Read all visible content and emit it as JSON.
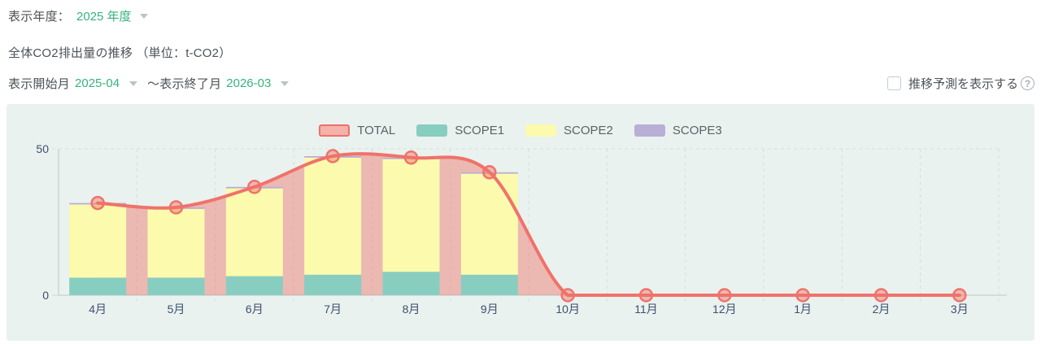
{
  "header": {
    "year_label": "表示年度：",
    "year_value": "2025 年度",
    "chart_title": "全体CO2排出量の推移 （単位：t-CO2）",
    "start_label": "表示開始月",
    "start_value": "2025-04",
    "range_separator": "～表示終了月",
    "end_value": "2026-03",
    "forecast_checkbox_label": "推移予測を表示する",
    "help_icon_glyph": "?"
  },
  "colors": {
    "accent_green": "#35b37e",
    "panel_background": "#e9f2ef",
    "axis_text": "#3f4e6e",
    "grid_line": "#d3e0dc",
    "axis_line": "#c9d8d3"
  },
  "chart_data": {
    "type": "line+stacked-bar",
    "title": "全体CO2排出量の推移",
    "unit": "t-CO2",
    "categories": [
      "4月",
      "5月",
      "6月",
      "7月",
      "8月",
      "9月",
      "10月",
      "11月",
      "12月",
      "1月",
      "2月",
      "3月"
    ],
    "ylim": [
      0,
      50
    ],
    "yticks": [
      0,
      50
    ],
    "grid": true,
    "legend_position": "top-center",
    "series": [
      {
        "name": "TOTAL",
        "type": "line",
        "color": "#f0726b",
        "area_color": "rgba(240,114,105,0.45)",
        "marker_fill": "rgba(240,114,105,0.45)",
        "swatch_fill": "#f5b2aa",
        "swatch_border": "#ef6f68",
        "values": [
          31.5,
          30,
          37,
          47.5,
          47,
          42,
          0,
          0,
          0,
          0,
          0,
          0
        ]
      },
      {
        "name": "SCOPE1",
        "type": "bar",
        "color": "#87cec0",
        "swatch_fill": "#87cec0",
        "values": [
          6,
          6,
          6.5,
          7,
          8,
          7,
          0,
          0,
          0,
          0,
          0,
          0
        ]
      },
      {
        "name": "SCOPE2",
        "type": "bar",
        "color": "#fbfaad",
        "swatch_fill": "#fbfaad",
        "values": [
          25,
          23.5,
          30,
          40,
          38.5,
          34.5,
          0,
          0,
          0,
          0,
          0,
          0
        ]
      },
      {
        "name": "SCOPE3",
        "type": "bar",
        "color": "#b9aed6",
        "swatch_fill": "#b9aed6",
        "values": [
          0.5,
          0.5,
          0.5,
          0.5,
          0.5,
          0.5,
          0,
          0,
          0,
          0,
          0,
          0
        ]
      }
    ]
  }
}
